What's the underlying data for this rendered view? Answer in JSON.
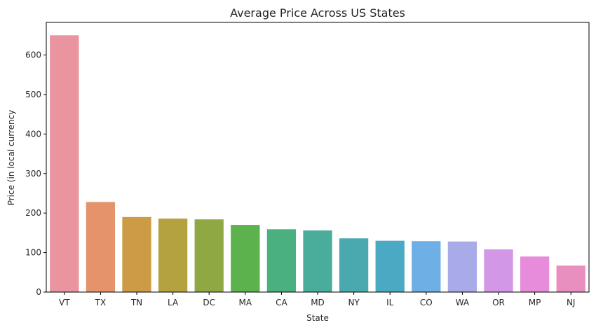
{
  "chart_data": {
    "type": "bar",
    "title": "Average Price Across US States",
    "xlabel": "State",
    "ylabel": "Price (in local currency",
    "categories": [
      "VT",
      "TX",
      "TN",
      "LA",
      "DC",
      "MA",
      "CA",
      "MD",
      "NY",
      "IL",
      "CO",
      "WA",
      "OR",
      "MP",
      "NJ"
    ],
    "values": [
      650,
      228,
      190,
      186,
      184,
      170,
      159,
      156,
      136,
      130,
      129,
      128,
      108,
      90,
      67
    ],
    "colors": [
      "#e9949f",
      "#e4936b",
      "#cb9b46",
      "#b4a13f",
      "#90a843",
      "#5cb24c",
      "#4ab07f",
      "#4aac9b",
      "#4aa9af",
      "#4aaac3",
      "#6eb0e6",
      "#a9aae8",
      "#d397e8",
      "#e68cdb",
      "#e98fbf"
    ],
    "ylim": [
      0,
      682.5
    ],
    "yticks": [
      0,
      100,
      200,
      300,
      400,
      500,
      600
    ],
    "grid": false,
    "legend": "none"
  }
}
